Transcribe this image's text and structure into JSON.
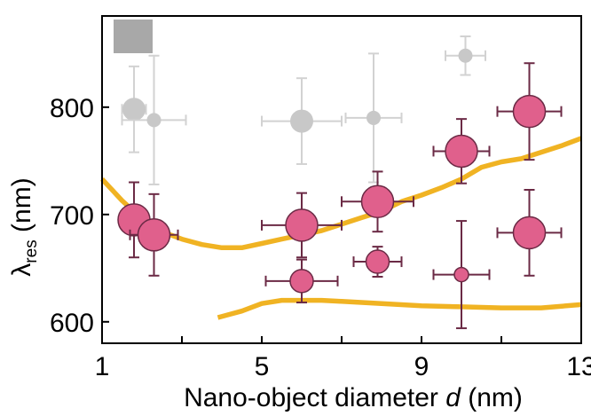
{
  "chart_data": {
    "type": "scatter",
    "title": "",
    "xlabel": {
      "main": "Nano-object diameter ",
      "var": "d",
      "unit": " (nm)"
    },
    "ylabel": {
      "symbol": "λ",
      "sub": "res",
      "unit": " (nm)"
    },
    "xlim": [
      1,
      13
    ],
    "ylim": [
      580,
      885
    ],
    "xticks": [
      1,
      5,
      9,
      13
    ],
    "xticks_minor": [
      3,
      7,
      11
    ],
    "yticks": [
      600,
      700,
      800
    ],
    "grid": false,
    "legend": "none",
    "colors": {
      "pink_fill": "#e0608c",
      "pink_edge": "#6b2a45",
      "grey": "#c8c8c8",
      "grey_light": "#d2d2d2",
      "curve": "#f0b323",
      "corner_marker": "#a8a8a8"
    },
    "series": [
      {
        "points": [
          {
            "x": 1.8,
            "y": 798,
            "xerr": [
              0.3,
              0.3
            ],
            "yerr": [
              40,
              40
            ],
            "size": "medium"
          },
          {
            "x": 6.0,
            "y": 787,
            "xerr": [
              1.0,
              1.0
            ],
            "yerr": [
              40,
              40
            ],
            "size": "medium"
          },
          {
            "x": 2.3,
            "y": 788,
            "xerr": [
              0.8,
              0.8
            ],
            "yerr": [
              60,
              60
            ],
            "size": "small"
          },
          {
            "x": 7.8,
            "y": 790,
            "xerr": [
              0.7,
              0.7
            ],
            "yerr": [
              60,
              60
            ],
            "size": "small"
          },
          {
            "x": 10.1,
            "y": 848,
            "xerr": [
              0.5,
              0.5
            ],
            "yerr": [
              18,
              18
            ],
            "size": "small"
          }
        ]
      },
      {
        "points": [
          {
            "x": 1.8,
            "y": 695,
            "xerr": [
              0.3,
              0.3
            ],
            "yerr": [
              35,
              35
            ],
            "size": "large"
          },
          {
            "x": 2.3,
            "y": 681,
            "xerr": [
              0.6,
              0.6
            ],
            "yerr": [
              38,
              38
            ],
            "size": "large"
          },
          {
            "x": 6.0,
            "y": 690,
            "xerr": [
              1.0,
              1.0
            ],
            "yerr": [
              30,
              30
            ],
            "size": "large"
          },
          {
            "x": 7.9,
            "y": 712,
            "xerr": [
              0.9,
              0.9
            ],
            "yerr": [
              28,
              28
            ],
            "size": "large"
          },
          {
            "x": 10.0,
            "y": 759,
            "xerr": [
              0.7,
              0.7
            ],
            "yerr": [
              30,
              30
            ],
            "size": "large"
          },
          {
            "x": 11.7,
            "y": 796,
            "xerr": [
              0.8,
              0.8
            ],
            "yerr": [
              45,
              45
            ],
            "size": "large"
          },
          {
            "x": 11.7,
            "y": 683,
            "xerr": [
              0.8,
              0.8
            ],
            "yerr": [
              40,
              40
            ],
            "size": "large"
          },
          {
            "x": 6.0,
            "y": 638,
            "xerr": [
              0.9,
              0.9
            ],
            "yerr": [
              20,
              20
            ],
            "size": "medium"
          },
          {
            "x": 7.9,
            "y": 656,
            "xerr": [
              0.6,
              0.6
            ],
            "yerr": [
              14,
              14
            ],
            "size": "medium"
          },
          {
            "x": 10.0,
            "y": 644,
            "xerr": [
              0.7,
              0.7
            ],
            "yerr": [
              50,
              50
            ],
            "size": "small"
          }
        ]
      }
    ],
    "curves": [
      {
        "points": [
          [
            1.0,
            733
          ],
          [
            1.5,
            713
          ],
          [
            2.0,
            696
          ],
          [
            2.5,
            684
          ],
          [
            3.0,
            677
          ],
          [
            3.5,
            672
          ],
          [
            4.0,
            669
          ],
          [
            4.5,
            669
          ],
          [
            5.0,
            673
          ],
          [
            5.5,
            677
          ],
          [
            6.0,
            681
          ],
          [
            6.5,
            685
          ],
          [
            7.0,
            691
          ],
          [
            7.5,
            697
          ],
          [
            8.0,
            703
          ],
          [
            8.5,
            712
          ],
          [
            9.0,
            718
          ],
          [
            9.5,
            725
          ],
          [
            10.0,
            733
          ],
          [
            10.5,
            744
          ],
          [
            11.0,
            749
          ],
          [
            11.5,
            752
          ],
          [
            12.0,
            758
          ],
          [
            12.5,
            764
          ],
          [
            13.0,
            771
          ]
        ]
      },
      {
        "points": [
          [
            3.9,
            604
          ],
          [
            4.5,
            610
          ],
          [
            5.0,
            617
          ],
          [
            5.5,
            620
          ],
          [
            6.0,
            620
          ],
          [
            6.5,
            620
          ],
          [
            7.0,
            619
          ],
          [
            8.0,
            617
          ],
          [
            9.0,
            615
          ],
          [
            10.0,
            614
          ],
          [
            11.0,
            613
          ],
          [
            12.0,
            613
          ],
          [
            13.0,
            616
          ]
        ]
      }
    ]
  }
}
